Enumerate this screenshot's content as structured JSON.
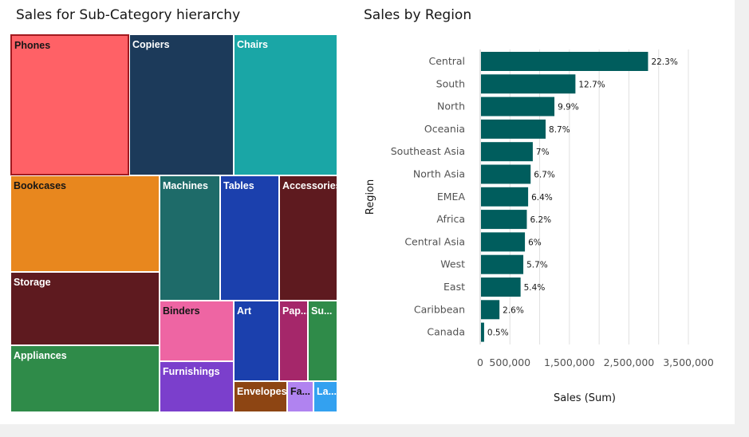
{
  "colors": {
    "bar": "#005d5d",
    "grid": "#e0e0e0",
    "axis_text": "#525252",
    "selected_border": "#a2191f"
  },
  "chart_data": [
    {
      "type": "treemap",
      "title": "Sales for Sub-Category hierarchy",
      "cells": [
        {
          "label": "Phones",
          "color": "#ff6166",
          "text_color": "#161616",
          "selected": true
        },
        {
          "label": "Copiers",
          "color": "#1c3a5a",
          "text_color": "#ffffff"
        },
        {
          "label": "Chairs",
          "color": "#1aa6a6",
          "text_color": "#ffffff"
        },
        {
          "label": "Bookcases",
          "color": "#e8871e",
          "text_color": "#161616"
        },
        {
          "label": "Machines",
          "color": "#1e6b69",
          "text_color": "#ffffff"
        },
        {
          "label": "Tables",
          "color": "#1b40ad",
          "text_color": "#ffffff"
        },
        {
          "label": "Accessories",
          "color": "#5e1a1f",
          "text_color": "#ffffff"
        },
        {
          "label": "Storage",
          "color": "#5e1a1f",
          "text_color": "#ffffff"
        },
        {
          "label": "Binders",
          "color": "#ee65a3",
          "text_color": "#161616"
        },
        {
          "label": "Art",
          "color": "#1b40ad",
          "text_color": "#ffffff"
        },
        {
          "label": "Pap...",
          "color": "#a5276a",
          "text_color": "#ffffff"
        },
        {
          "label": "Su...",
          "color": "#2f8b49",
          "text_color": "#ffffff"
        },
        {
          "label": "Appliances",
          "color": "#2f8b49",
          "text_color": "#ffffff"
        },
        {
          "label": "Furnishings",
          "color": "#7b3fcc",
          "text_color": "#ffffff"
        },
        {
          "label": "Envelopes",
          "color": "#8d4513",
          "text_color": "#ffffff"
        },
        {
          "label": "Fa...",
          "color": "#b083f0",
          "text_color": "#161616"
        },
        {
          "label": "La...",
          "color": "#33a1f0",
          "text_color": "#ffffff"
        }
      ]
    },
    {
      "type": "bar",
      "orientation": "horizontal",
      "title": "Sales by Region",
      "xlabel": "Sales (Sum)",
      "ylabel": "Region",
      "xlim": [
        0,
        3500000
      ],
      "xticks": [
        0,
        500000,
        1500000,
        2500000,
        3500000
      ],
      "xtick_labels": [
        "0",
        "500,000",
        "1,500,000",
        "2,500,000",
        "3,500,000"
      ],
      "grid_values": [
        0,
        500000,
        1000000,
        1500000,
        2000000,
        2500000,
        3000000,
        3500000
      ],
      "grid": true,
      "categories": [
        "Central",
        "South",
        "North",
        "Oceania",
        "Southeast Asia",
        "North Asia",
        "EMEA",
        "Africa",
        "Central Asia",
        "West",
        "East",
        "Caribbean",
        "Canada"
      ],
      "values": [
        2822000,
        1601000,
        1248000,
        1100000,
        884000,
        848000,
        806000,
        784000,
        752000,
        725000,
        679000,
        324000,
        66000
      ],
      "data_labels": [
        "22.3%",
        "12.7%",
        "9.9%",
        "8.7%",
        "7%",
        "6.7%",
        "6.4%",
        "6.2%",
        "6%",
        "5.7%",
        "5.4%",
        "2.6%",
        "0.5%"
      ]
    }
  ]
}
